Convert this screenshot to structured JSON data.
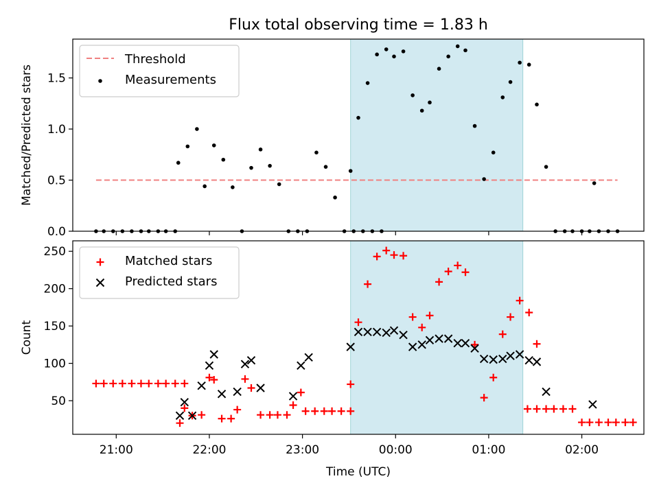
{
  "title": "Flux total observing time = 1.83 h",
  "chart_data": [
    {
      "type": "scatter",
      "ylabel": "Matched/Predicted stars",
      "xlabel": "",
      "xlim": [
        "20:32",
        "02:40"
      ],
      "ylim": [
        0,
        1.88
      ],
      "yticks": [
        0,
        0.5,
        1,
        1.5
      ],
      "ytick_labels": [
        "0.0",
        "0.5",
        "1.0",
        "1.5"
      ],
      "xticks": [
        "21:00",
        "22:00",
        "23:00",
        "00:00",
        "01:00",
        "02:00"
      ],
      "show_x_tick_labels": false,
      "grid": false,
      "legend_position": "upper-left",
      "highlight_span": [
        "23:31",
        "01:22"
      ],
      "highlight_color": "#add8e6",
      "threshold": {
        "name": "Threshold",
        "value": 0.5,
        "x_range": [
          "20:47",
          "02:23"
        ],
        "color": "#f08080",
        "style": "dashed"
      },
      "series": [
        {
          "name": "Measurements",
          "marker": "dot",
          "color": "#000000",
          "points": [
            [
              "20:47",
              0
            ],
            [
              "20:52",
              0
            ],
            [
              "20:58",
              0
            ],
            [
              "21:04",
              0
            ],
            [
              "21:10",
              0
            ],
            [
              "21:16",
              0
            ],
            [
              "21:21",
              0
            ],
            [
              "21:27",
              0
            ],
            [
              "21:32",
              0
            ],
            [
              "21:38",
              0
            ],
            [
              "21:40",
              0.67
            ],
            [
              "21:46",
              0.83
            ],
            [
              "21:52",
              1.0
            ],
            [
              "21:57",
              0.44
            ],
            [
              "22:03",
              0.84
            ],
            [
              "22:09",
              0.7
            ],
            [
              "22:15",
              0.43
            ],
            [
              "22:21",
              0.0
            ],
            [
              "22:27",
              0.62
            ],
            [
              "22:33",
              0.8
            ],
            [
              "22:39",
              0.64
            ],
            [
              "22:45",
              0.46
            ],
            [
              "22:51",
              0.0
            ],
            [
              "22:57",
              0.0
            ],
            [
              "23:03",
              0.0
            ],
            [
              "23:09",
              0.77
            ],
            [
              "23:15",
              0.63
            ],
            [
              "23:21",
              0.33
            ],
            [
              "23:27",
              0.0
            ],
            [
              "23:33",
              0.0
            ],
            [
              "23:39",
              0.0
            ],
            [
              "23:45",
              0.0
            ],
            [
              "23:51",
              0.0
            ],
            [
              "23:31",
              0.59
            ],
            [
              "23:36",
              1.11
            ],
            [
              "23:42",
              1.45
            ],
            [
              "23:48",
              1.73
            ],
            [
              "23:54",
              1.78
            ],
            [
              "23:59",
              1.71
            ],
            [
              "00:05",
              1.76
            ],
            [
              "00:11",
              1.33
            ],
            [
              "00:17",
              1.18
            ],
            [
              "00:22",
              1.26
            ],
            [
              "00:28",
              1.59
            ],
            [
              "00:34",
              1.71
            ],
            [
              "00:40",
              1.81
            ],
            [
              "00:45",
              1.77
            ],
            [
              "00:51",
              1.03
            ],
            [
              "00:57",
              0.51
            ],
            [
              "01:03",
              0.77
            ],
            [
              "01:09",
              1.31
            ],
            [
              "01:14",
              1.46
            ],
            [
              "01:20",
              1.65
            ],
            [
              "01:26",
              1.63
            ],
            [
              "01:31",
              1.24
            ],
            [
              "01:37",
              0.63
            ],
            [
              "01:43",
              0
            ],
            [
              "01:49",
              0
            ],
            [
              "01:54",
              0
            ],
            [
              "02:00",
              0
            ],
            [
              "02:05",
              0
            ],
            [
              "02:08",
              0.47
            ],
            [
              "02:11",
              0
            ],
            [
              "02:17",
              0
            ],
            [
              "02:23",
              0
            ]
          ]
        }
      ]
    },
    {
      "type": "scatter",
      "ylabel": "Count",
      "xlabel": "Time (UTC)",
      "xlim": [
        "20:32",
        "02:40"
      ],
      "ylim": [
        5,
        264
      ],
      "yticks": [
        50,
        100,
        150,
        200,
        250
      ],
      "ytick_labels": [
        "50",
        "100",
        "150",
        "200",
        "250"
      ],
      "xticks": [
        "21:00",
        "22:00",
        "23:00",
        "00:00",
        "01:00",
        "02:00"
      ],
      "xtick_labels": [
        "21:00",
        "22:00",
        "23:00",
        "00:00",
        "01:00",
        "02:00"
      ],
      "show_x_tick_labels": true,
      "grid": false,
      "legend_position": "upper-left",
      "highlight_span": [
        "23:31",
        "01:22"
      ],
      "highlight_color": "#add8e6",
      "series": [
        {
          "name": "Matched stars",
          "marker": "plus",
          "color": "#ff0000",
          "points": [
            [
              "20:47",
              73
            ],
            [
              "20:52",
              73
            ],
            [
              "20:58",
              73
            ],
            [
              "21:04",
              73
            ],
            [
              "21:10",
              73
            ],
            [
              "21:16",
              73
            ],
            [
              "21:21",
              73
            ],
            [
              "21:27",
              73
            ],
            [
              "21:32",
              73
            ],
            [
              "21:38",
              73
            ],
            [
              "21:44",
              73
            ],
            [
              "21:41",
              20
            ],
            [
              "21:44",
              40
            ],
            [
              "21:49",
              30
            ],
            [
              "21:55",
              31
            ],
            [
              "22:00",
              81
            ],
            [
              "22:03",
              78
            ],
            [
              "22:08",
              26
            ],
            [
              "22:14",
              26
            ],
            [
              "22:18",
              38
            ],
            [
              "22:23",
              79
            ],
            [
              "22:27",
              67
            ],
            [
              "22:33",
              31
            ],
            [
              "22:39",
              31
            ],
            [
              "22:44",
              31
            ],
            [
              "22:50",
              31
            ],
            [
              "22:54",
              44
            ],
            [
              "22:59",
              61
            ],
            [
              "23:02",
              36
            ],
            [
              "23:08",
              36
            ],
            [
              "23:14",
              36
            ],
            [
              "23:19",
              36
            ],
            [
              "23:25",
              36
            ],
            [
              "23:31",
              36
            ],
            [
              "23:31",
              72
            ],
            [
              "23:36",
              155
            ],
            [
              "23:42",
              206
            ],
            [
              "23:48",
              243
            ],
            [
              "23:54",
              251
            ],
            [
              "23:59",
              245
            ],
            [
              "00:05",
              244
            ],
            [
              "00:11",
              162
            ],
            [
              "00:17",
              148
            ],
            [
              "00:22",
              164
            ],
            [
              "00:28",
              209
            ],
            [
              "00:34",
              223
            ],
            [
              "00:40",
              231
            ],
            [
              "00:45",
              222
            ],
            [
              "00:51",
              125
            ],
            [
              "00:57",
              54
            ],
            [
              "01:03",
              81
            ],
            [
              "01:09",
              139
            ],
            [
              "01:14",
              162
            ],
            [
              "01:20",
              184
            ],
            [
              "01:26",
              168
            ],
            [
              "01:31",
              126
            ],
            [
              "01:25",
              39
            ],
            [
              "01:31",
              39
            ],
            [
              "01:37",
              39
            ],
            [
              "01:42",
              39
            ],
            [
              "01:48",
              39
            ],
            [
              "01:54",
              39
            ],
            [
              "02:00",
              21
            ],
            [
              "02:05",
              21
            ],
            [
              "02:11",
              21
            ],
            [
              "02:17",
              21
            ],
            [
              "02:22",
              21
            ],
            [
              "02:28",
              21
            ],
            [
              "02:33",
              21
            ]
          ]
        },
        {
          "name": "Predicted stars",
          "marker": "x",
          "color": "#000000",
          "points": [
            [
              "21:41",
              30
            ],
            [
              "21:44",
              48
            ],
            [
              "21:49",
              30
            ],
            [
              "21:55",
              70
            ],
            [
              "22:00",
              97
            ],
            [
              "22:03",
              112
            ],
            [
              "22:08",
              59
            ],
            [
              "22:18",
              62
            ],
            [
              "22:23",
              99
            ],
            [
              "22:27",
              104
            ],
            [
              "22:33",
              67
            ],
            [
              "22:54",
              56
            ],
            [
              "22:59",
              97
            ],
            [
              "23:04",
              108
            ],
            [
              "23:31",
              122
            ],
            [
              "23:36",
              142
            ],
            [
              "23:42",
              142
            ],
            [
              "23:48",
              142
            ],
            [
              "23:54",
              141
            ],
            [
              "23:59",
              144
            ],
            [
              "00:05",
              138
            ],
            [
              "00:11",
              122
            ],
            [
              "00:17",
              125
            ],
            [
              "00:22",
              131
            ],
            [
              "00:28",
              133
            ],
            [
              "00:34",
              133
            ],
            [
              "00:40",
              127
            ],
            [
              "00:45",
              127
            ],
            [
              "00:51",
              120
            ],
            [
              "00:57",
              106
            ],
            [
              "01:03",
              105
            ],
            [
              "01:09",
              106
            ],
            [
              "01:14",
              110
            ],
            [
              "01:20",
              112
            ],
            [
              "01:26",
              104
            ],
            [
              "01:31",
              102
            ],
            [
              "01:37",
              62
            ],
            [
              "02:07",
              45
            ]
          ]
        }
      ]
    }
  ]
}
